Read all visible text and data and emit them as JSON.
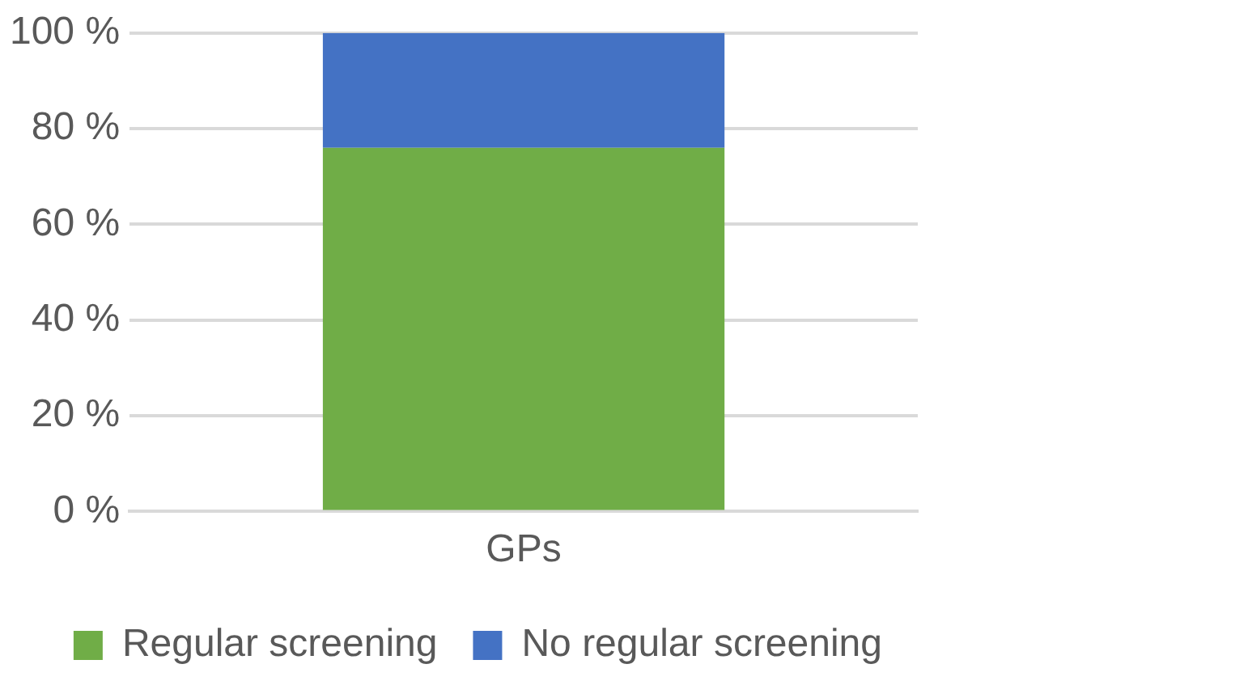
{
  "chart_data": {
    "type": "bar",
    "stacked": true,
    "categories": [
      "GPs"
    ],
    "series": [
      {
        "name": "Regular screening",
        "color": "#70ad47",
        "values": [
          76
        ]
      },
      {
        "name": "No regular screening",
        "color": "#4472c4",
        "values": [
          24
        ]
      }
    ],
    "ylim": [
      0,
      100
    ],
    "yticks": [
      {
        "value": 0,
        "label": "0 %"
      },
      {
        "value": 20,
        "label": "20 %"
      },
      {
        "value": 40,
        "label": "40 %"
      },
      {
        "value": 60,
        "label": "60 %"
      },
      {
        "value": 80,
        "label": "80 %"
      },
      {
        "value": 100,
        "label": "100 %"
      }
    ],
    "grid": "y",
    "legend": "bottom"
  }
}
